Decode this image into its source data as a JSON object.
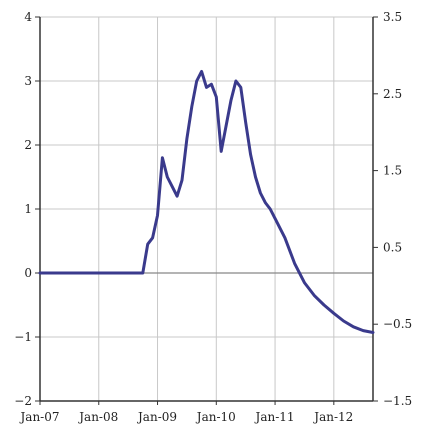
{
  "chart_data": {
    "type": "line",
    "title": "",
    "xlabel": "",
    "ylabel": "",
    "grid": true,
    "legend": "none",
    "x_tick_labels": [
      "Jan-07",
      "Jan-08",
      "Jan-09",
      "Jan-10",
      "Jan-11",
      "Jan-12"
    ],
    "x_tick_dates": [
      "2007-01",
      "2008-01",
      "2009-01",
      "2010-01",
      "2011-01",
      "2012-01"
    ],
    "xlim": [
      "2007-01",
      "2012-09"
    ],
    "left_axis": {
      "ylim": [
        -2,
        4
      ],
      "ticks": [
        4,
        3,
        2,
        1,
        0,
        -1,
        -2
      ],
      "tick_labels": [
        "4",
        "3",
        "2",
        "1",
        "0",
        "−1",
        "−2"
      ]
    },
    "right_axis": {
      "ylim": [
        -1.5,
        3.5
      ],
      "ticks": [
        3.5,
        2.5,
        1.5,
        0.5,
        -0.5,
        -1.5
      ],
      "tick_labels": [
        "3.5",
        "2.5",
        "1.5",
        "0.5",
        "−0.5",
        "−1.5"
      ]
    },
    "series": [
      {
        "axis": "left",
        "color": "#3a3a8c",
        "points": [
          {
            "x": "2007-01",
            "y": 0.0
          },
          {
            "x": "2007-06",
            "y": 0.0
          },
          {
            "x": "2008-01",
            "y": 0.0
          },
          {
            "x": "2008-06",
            "y": 0.0
          },
          {
            "x": "2008-10",
            "y": 0.0
          },
          {
            "x": "2008-11",
            "y": 0.45
          },
          {
            "x": "2008-12",
            "y": 0.55
          },
          {
            "x": "2009-01",
            "y": 0.9
          },
          {
            "x": "2009-02",
            "y": 1.8
          },
          {
            "x": "2009-03",
            "y": 1.5
          },
          {
            "x": "2009-04",
            "y": 1.35
          },
          {
            "x": "2009-05",
            "y": 1.2
          },
          {
            "x": "2009-06",
            "y": 1.45
          },
          {
            "x": "2009-07",
            "y": 2.1
          },
          {
            "x": "2009-08",
            "y": 2.6
          },
          {
            "x": "2009-09",
            "y": 3.0
          },
          {
            "x": "2009-10",
            "y": 3.15
          },
          {
            "x": "2009-11",
            "y": 2.9
          },
          {
            "x": "2009-12",
            "y": 2.95
          },
          {
            "x": "2010-01",
            "y": 2.75
          },
          {
            "x": "2010-02",
            "y": 1.9
          },
          {
            "x": "2010-03",
            "y": 2.3
          },
          {
            "x": "2010-04",
            "y": 2.7
          },
          {
            "x": "2010-05",
            "y": 3.0
          },
          {
            "x": "2010-06",
            "y": 2.9
          },
          {
            "x": "2010-07",
            "y": 2.35
          },
          {
            "x": "2010-08",
            "y": 1.85
          },
          {
            "x": "2010-09",
            "y": 1.5
          },
          {
            "x": "2010-10",
            "y": 1.25
          },
          {
            "x": "2010-11",
            "y": 1.1
          },
          {
            "x": "2010-12",
            "y": 1.0
          },
          {
            "x": "2011-01",
            "y": 0.85
          },
          {
            "x": "2011-03",
            "y": 0.55
          },
          {
            "x": "2011-05",
            "y": 0.15
          },
          {
            "x": "2011-07",
            "y": -0.15
          },
          {
            "x": "2011-09",
            "y": -0.35
          },
          {
            "x": "2011-11",
            "y": -0.5
          },
          {
            "x": "2012-01",
            "y": -0.63
          },
          {
            "x": "2012-03",
            "y": -0.75
          },
          {
            "x": "2012-05",
            "y": -0.84
          },
          {
            "x": "2012-07",
            "y": -0.9
          },
          {
            "x": "2012-09",
            "y": -0.93
          }
        ]
      }
    ]
  }
}
